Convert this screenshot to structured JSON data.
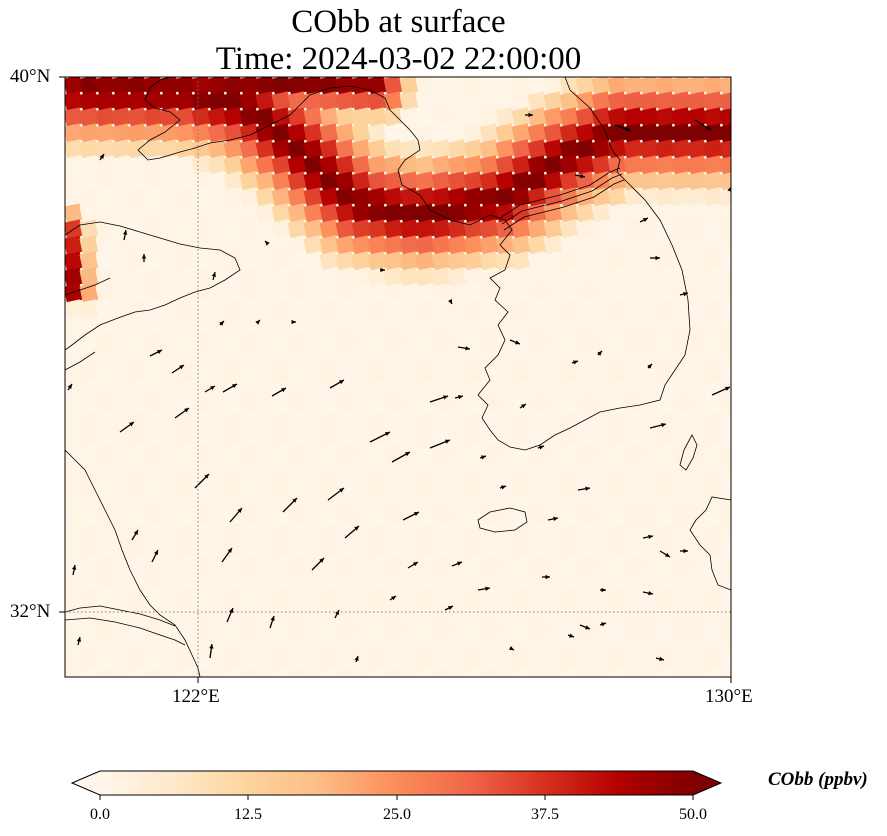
{
  "title": {
    "line1": "CObb at surface",
    "line2": "Time: 2024-03-02 22:00:00"
  },
  "map": {
    "variable": "CObb",
    "units": "ppbv",
    "extent": {
      "lon_min": 119.5,
      "lon_max": 130.0,
      "lat_min": 31.0,
      "lat_max": 40.0
    },
    "lat_labels": [
      "40°N",
      "32°N"
    ],
    "lon_labels": [
      "122°E",
      "130°E"
    ],
    "gridlines": {
      "lon": [
        122
      ],
      "lat": [
        32
      ],
      "style": "dotted"
    },
    "plume_color": "#7f0000",
    "coastline_color": "#000000"
  },
  "colorbar": {
    "label": "CObb (ppbv)",
    "min": 0.0,
    "max": 50.0,
    "ticks": [
      "0.0",
      "12.5",
      "25.0",
      "37.5",
      "50.0"
    ],
    "extend": "both",
    "colormap": "OrRd",
    "stops": [
      "#fff7ec",
      "#fee8c8",
      "#fdd49e",
      "#fdbb84",
      "#fc8d59",
      "#ef6548",
      "#d7301f",
      "#b30000",
      "#7f0000"
    ]
  }
}
